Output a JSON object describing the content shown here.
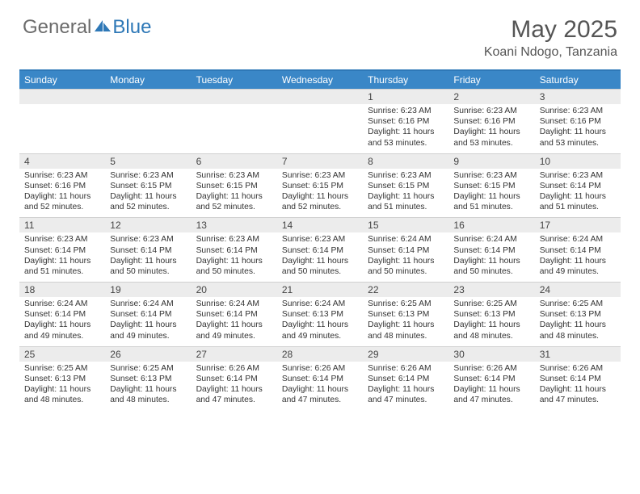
{
  "logo": {
    "text_gray": "General",
    "text_blue": "Blue"
  },
  "title": "May 2025",
  "location": "Koani Ndogo, Tanzania",
  "colors": {
    "header_bg": "#3a87c7",
    "header_border": "#2e78b7",
    "daynum_bg": "#ececec",
    "text": "#333333",
    "title_text": "#555555"
  },
  "day_headers": [
    "Sunday",
    "Monday",
    "Tuesday",
    "Wednesday",
    "Thursday",
    "Friday",
    "Saturday"
  ],
  "weeks": [
    [
      null,
      null,
      null,
      null,
      {
        "n": "1",
        "sr": "6:23 AM",
        "ss": "6:16 PM",
        "dl": "11 hours and 53 minutes."
      },
      {
        "n": "2",
        "sr": "6:23 AM",
        "ss": "6:16 PM",
        "dl": "11 hours and 53 minutes."
      },
      {
        "n": "3",
        "sr": "6:23 AM",
        "ss": "6:16 PM",
        "dl": "11 hours and 53 minutes."
      }
    ],
    [
      {
        "n": "4",
        "sr": "6:23 AM",
        "ss": "6:16 PM",
        "dl": "11 hours and 52 minutes."
      },
      {
        "n": "5",
        "sr": "6:23 AM",
        "ss": "6:15 PM",
        "dl": "11 hours and 52 minutes."
      },
      {
        "n": "6",
        "sr": "6:23 AM",
        "ss": "6:15 PM",
        "dl": "11 hours and 52 minutes."
      },
      {
        "n": "7",
        "sr": "6:23 AM",
        "ss": "6:15 PM",
        "dl": "11 hours and 52 minutes."
      },
      {
        "n": "8",
        "sr": "6:23 AM",
        "ss": "6:15 PM",
        "dl": "11 hours and 51 minutes."
      },
      {
        "n": "9",
        "sr": "6:23 AM",
        "ss": "6:15 PM",
        "dl": "11 hours and 51 minutes."
      },
      {
        "n": "10",
        "sr": "6:23 AM",
        "ss": "6:14 PM",
        "dl": "11 hours and 51 minutes."
      }
    ],
    [
      {
        "n": "11",
        "sr": "6:23 AM",
        "ss": "6:14 PM",
        "dl": "11 hours and 51 minutes."
      },
      {
        "n": "12",
        "sr": "6:23 AM",
        "ss": "6:14 PM",
        "dl": "11 hours and 50 minutes."
      },
      {
        "n": "13",
        "sr": "6:23 AM",
        "ss": "6:14 PM",
        "dl": "11 hours and 50 minutes."
      },
      {
        "n": "14",
        "sr": "6:23 AM",
        "ss": "6:14 PM",
        "dl": "11 hours and 50 minutes."
      },
      {
        "n": "15",
        "sr": "6:24 AM",
        "ss": "6:14 PM",
        "dl": "11 hours and 50 minutes."
      },
      {
        "n": "16",
        "sr": "6:24 AM",
        "ss": "6:14 PM",
        "dl": "11 hours and 50 minutes."
      },
      {
        "n": "17",
        "sr": "6:24 AM",
        "ss": "6:14 PM",
        "dl": "11 hours and 49 minutes."
      }
    ],
    [
      {
        "n": "18",
        "sr": "6:24 AM",
        "ss": "6:14 PM",
        "dl": "11 hours and 49 minutes."
      },
      {
        "n": "19",
        "sr": "6:24 AM",
        "ss": "6:14 PM",
        "dl": "11 hours and 49 minutes."
      },
      {
        "n": "20",
        "sr": "6:24 AM",
        "ss": "6:14 PM",
        "dl": "11 hours and 49 minutes."
      },
      {
        "n": "21",
        "sr": "6:24 AM",
        "ss": "6:13 PM",
        "dl": "11 hours and 49 minutes."
      },
      {
        "n": "22",
        "sr": "6:25 AM",
        "ss": "6:13 PM",
        "dl": "11 hours and 48 minutes."
      },
      {
        "n": "23",
        "sr": "6:25 AM",
        "ss": "6:13 PM",
        "dl": "11 hours and 48 minutes."
      },
      {
        "n": "24",
        "sr": "6:25 AM",
        "ss": "6:13 PM",
        "dl": "11 hours and 48 minutes."
      }
    ],
    [
      {
        "n": "25",
        "sr": "6:25 AM",
        "ss": "6:13 PM",
        "dl": "11 hours and 48 minutes."
      },
      {
        "n": "26",
        "sr": "6:25 AM",
        "ss": "6:13 PM",
        "dl": "11 hours and 48 minutes."
      },
      {
        "n": "27",
        "sr": "6:26 AM",
        "ss": "6:14 PM",
        "dl": "11 hours and 47 minutes."
      },
      {
        "n": "28",
        "sr": "6:26 AM",
        "ss": "6:14 PM",
        "dl": "11 hours and 47 minutes."
      },
      {
        "n": "29",
        "sr": "6:26 AM",
        "ss": "6:14 PM",
        "dl": "11 hours and 47 minutes."
      },
      {
        "n": "30",
        "sr": "6:26 AM",
        "ss": "6:14 PM",
        "dl": "11 hours and 47 minutes."
      },
      {
        "n": "31",
        "sr": "6:26 AM",
        "ss": "6:14 PM",
        "dl": "11 hours and 47 minutes."
      }
    ]
  ],
  "labels": {
    "sunrise": "Sunrise: ",
    "sunset": "Sunset: ",
    "daylight": "Daylight: "
  }
}
